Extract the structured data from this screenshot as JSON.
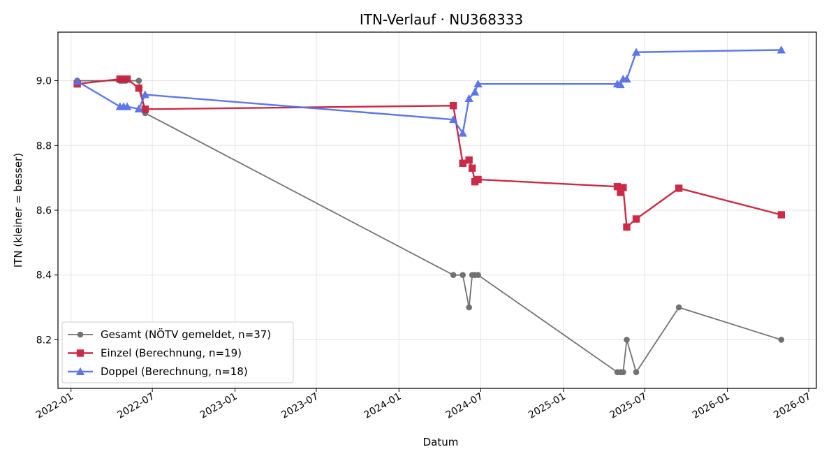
{
  "chart_data": {
    "type": "line",
    "title": "ITN-Verlauf · NU368333",
    "xlabel": "Datum",
    "ylabel": "ITN  (kleiner = besser)",
    "xlim": [
      "2021-12-03",
      "2026-07-18"
    ],
    "ylim": [
      8.05,
      9.15
    ],
    "x_ticks": [
      "2022-01",
      "2022-07",
      "2023-01",
      "2023-07",
      "2024-01",
      "2024-07",
      "2025-01",
      "2025-07",
      "2026-01",
      "2026-07"
    ],
    "x_tick_dates": [
      "2022-01-01",
      "2022-07-01",
      "2023-01-01",
      "2023-07-01",
      "2024-01-01",
      "2024-07-01",
      "2025-01-01",
      "2025-07-01",
      "2026-01-01",
      "2026-07-01"
    ],
    "y_ticks": [
      "8.2",
      "8.4",
      "8.6",
      "8.8",
      "9.0"
    ],
    "y_tick_values": [
      8.2,
      8.4,
      8.6,
      8.8,
      9.0
    ],
    "grid": true,
    "legend_position": "bottom-left",
    "series": [
      {
        "name": "Gesamt (NÖTV gemeldet, n=37)",
        "color": "#444444",
        "marker": "circle",
        "points": [
          [
            "2022-01-15",
            9.0
          ],
          [
            "2022-04-20",
            9.0
          ],
          [
            "2022-04-24",
            9.0
          ],
          [
            "2022-04-28",
            9.0
          ],
          [
            "2022-05-03",
            9.0
          ],
          [
            "2022-06-01",
            9.0
          ],
          [
            "2022-06-15",
            8.9
          ],
          [
            "2024-05-01",
            8.4
          ],
          [
            "2024-05-22",
            8.4
          ],
          [
            "2024-06-05",
            8.3
          ],
          [
            "2024-06-12",
            8.4
          ],
          [
            "2024-06-18",
            8.4
          ],
          [
            "2024-06-25",
            8.4
          ],
          [
            "2025-05-01",
            8.1
          ],
          [
            "2025-05-08",
            8.1
          ],
          [
            "2025-05-14",
            8.1
          ],
          [
            "2025-05-22",
            8.2
          ],
          [
            "2025-06-12",
            8.1
          ],
          [
            "2025-09-15",
            8.3
          ],
          [
            "2026-05-01",
            8.2
          ]
        ]
      },
      {
        "name": "Einzel (Berechnung, n=19)",
        "color": "#c8203d",
        "marker": "square",
        "points": [
          [
            "2022-01-15",
            8.99
          ],
          [
            "2022-04-20",
            9.005
          ],
          [
            "2022-04-28",
            9.005
          ],
          [
            "2022-05-06",
            9.005
          ],
          [
            "2022-06-01",
            8.977
          ],
          [
            "2022-06-15",
            8.912
          ],
          [
            "2024-05-01",
            8.923
          ],
          [
            "2024-05-22",
            8.745
          ],
          [
            "2024-06-05",
            8.755
          ],
          [
            "2024-06-12",
            8.73
          ],
          [
            "2024-06-18",
            8.688
          ],
          [
            "2024-06-25",
            8.695
          ],
          [
            "2025-05-01",
            8.673
          ],
          [
            "2025-05-08",
            8.655
          ],
          [
            "2025-05-14",
            8.67
          ],
          [
            "2025-05-22",
            8.548
          ],
          [
            "2025-06-12",
            8.573
          ],
          [
            "2025-09-15",
            8.668
          ],
          [
            "2026-05-01",
            8.586
          ]
        ]
      },
      {
        "name": "Doppel (Berechnung, n=18)",
        "color": "#5570e8",
        "marker": "triangle",
        "points": [
          [
            "2022-01-15",
            8.998
          ],
          [
            "2022-04-20",
            8.92
          ],
          [
            "2022-04-28",
            8.92
          ],
          [
            "2022-05-06",
            8.92
          ],
          [
            "2022-06-01",
            8.913
          ],
          [
            "2022-06-15",
            8.957
          ],
          [
            "2024-05-01",
            8.88
          ],
          [
            "2024-05-22",
            8.838
          ],
          [
            "2024-06-05",
            8.945
          ],
          [
            "2024-06-18",
            8.965
          ],
          [
            "2024-06-25",
            8.99
          ],
          [
            "2025-05-01",
            8.99
          ],
          [
            "2025-05-08",
            8.988
          ],
          [
            "2025-05-14",
            9.005
          ],
          [
            "2025-05-22",
            9.005
          ],
          [
            "2025-06-12",
            9.088
          ],
          [
            "2026-05-01",
            9.095
          ]
        ]
      }
    ]
  }
}
